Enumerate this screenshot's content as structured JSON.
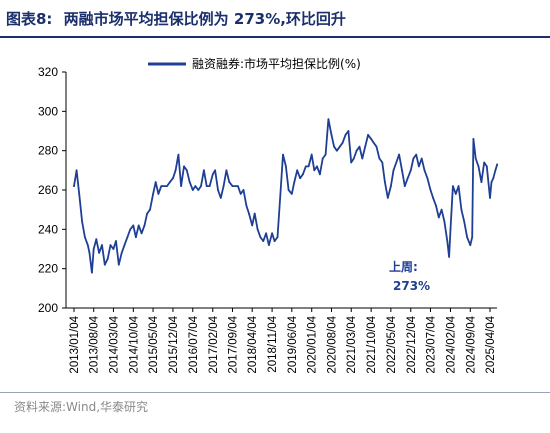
{
  "header": {
    "figure_label": "图表8:",
    "title": "两融市场平均担保比例为 273%,环比回升"
  },
  "footer": {
    "source": "资料来源:Wind,华泰研究"
  },
  "colors": {
    "line": "#1f3f94",
    "axis": "#000000",
    "annotation": "#1f3f94"
  },
  "chart_data": {
    "type": "line",
    "title": "两融市场平均担保比例为 273%,环比回升",
    "xlabel": "",
    "ylabel": "",
    "ylim": [
      200,
      320
    ],
    "yticks": [
      200,
      220,
      240,
      260,
      280,
      300,
      320
    ],
    "grid": false,
    "legend_position": "top-right",
    "x_tick_labels": [
      "2013/01/04",
      "2013/08/04",
      "2014/03/04",
      "2014/10/04",
      "2015/05/04",
      "2015/12/04",
      "2016/07/04",
      "2017/02/04",
      "2017/09/04",
      "2018/04/04",
      "2018/11/04",
      "2019/06/04",
      "2020/01/04",
      "2020/08/04",
      "2021/03/04",
      "2021/10/04",
      "2022/05/04",
      "2022/12/04",
      "2023/07/04",
      "2024/02/04",
      "2024/09/04",
      "2025/04/04"
    ],
    "annotation": {
      "line1": "上周:",
      "line2": "273%"
    },
    "series": [
      {
        "name": "融资融券:市场平均担保比例(%)",
        "points": [
          [
            "2013/01/04",
            262
          ],
          [
            "2013/02/01",
            270
          ],
          [
            "2013/03/01",
            258
          ],
          [
            "2013/04/01",
            244
          ],
          [
            "2013/05/01",
            236
          ],
          [
            "2013/06/01",
            232
          ],
          [
            "2013/06/20",
            228
          ],
          [
            "2013/07/15",
            218
          ],
          [
            "2013/08/04",
            230
          ],
          [
            "2013/09/01",
            235
          ],
          [
            "2013/10/01",
            228
          ],
          [
            "2013/11/01",
            232
          ],
          [
            "2013/12/01",
            222
          ],
          [
            "2014/01/01",
            225
          ],
          [
            "2014/02/01",
            232
          ],
          [
            "2014/03/04",
            230
          ],
          [
            "2014/04/01",
            234
          ],
          [
            "2014/05/01",
            222
          ],
          [
            "2014/06/01",
            228
          ],
          [
            "2014/07/01",
            232
          ],
          [
            "2014/08/01",
            236
          ],
          [
            "2014/09/01",
            240
          ],
          [
            "2014/10/04",
            242
          ],
          [
            "2014/11/01",
            236
          ],
          [
            "2014/12/01",
            242
          ],
          [
            "2015/01/01",
            238
          ],
          [
            "2015/02/01",
            242
          ],
          [
            "2015/03/01",
            248
          ],
          [
            "2015/04/01",
            250
          ],
          [
            "2015/05/04",
            258
          ],
          [
            "2015/06/01",
            264
          ],
          [
            "2015/07/01",
            258
          ],
          [
            "2015/08/01",
            262
          ],
          [
            "2015/09/01",
            262
          ],
          [
            "2015/10/01",
            262
          ],
          [
            "2015/11/01",
            264
          ],
          [
            "2015/12/04",
            266
          ],
          [
            "2016/01/01",
            270
          ],
          [
            "2016/02/01",
            278
          ],
          [
            "2016/03/01",
            262
          ],
          [
            "2016/04/01",
            272
          ],
          [
            "2016/05/01",
            270
          ],
          [
            "2016/06/01",
            264
          ],
          [
            "2016/07/04",
            260
          ],
          [
            "2016/08/01",
            262
          ],
          [
            "2016/09/01",
            260
          ],
          [
            "2016/10/01",
            262
          ],
          [
            "2016/11/01",
            270
          ],
          [
            "2016/12/01",
            262
          ],
          [
            "2017/01/01",
            262
          ],
          [
            "2017/02/04",
            268
          ],
          [
            "2017/03/01",
            270
          ],
          [
            "2017/04/01",
            260
          ],
          [
            "2017/05/01",
            256
          ],
          [
            "2017/06/01",
            262
          ],
          [
            "2017/07/01",
            270
          ],
          [
            "2017/08/01",
            264
          ],
          [
            "2017/09/04",
            262
          ],
          [
            "2017/10/01",
            262
          ],
          [
            "2017/11/01",
            262
          ],
          [
            "2017/12/01",
            258
          ],
          [
            "2018/01/01",
            260
          ],
          [
            "2018/02/01",
            252
          ],
          [
            "2018/03/01",
            248
          ],
          [
            "2018/04/04",
            242
          ],
          [
            "2018/05/01",
            248
          ],
          [
            "2018/06/01",
            240
          ],
          [
            "2018/07/01",
            236
          ],
          [
            "2018/08/01",
            234
          ],
          [
            "2018/09/01",
            238
          ],
          [
            "2018/10/01",
            232
          ],
          [
            "2018/11/04",
            238
          ],
          [
            "2018/12/01",
            234
          ],
          [
            "2019/01/01",
            236
          ],
          [
            "2019/02/01",
            258
          ],
          [
            "2019/03/01",
            278
          ],
          [
            "2019/04/01",
            272
          ],
          [
            "2019/05/01",
            260
          ],
          [
            "2019/06/04",
            258
          ],
          [
            "2019/07/01",
            264
          ],
          [
            "2019/08/01",
            270
          ],
          [
            "2019/09/01",
            266
          ],
          [
            "2019/10/01",
            268
          ],
          [
            "2019/11/01",
            272
          ],
          [
            "2019/12/01",
            272
          ],
          [
            "2020/01/04",
            278
          ],
          [
            "2020/02/01",
            270
          ],
          [
            "2020/03/01",
            272
          ],
          [
            "2020/04/01",
            268
          ],
          [
            "2020/05/01",
            276
          ],
          [
            "2020/06/01",
            278
          ],
          [
            "2020/07/01",
            296
          ],
          [
            "2020/08/04",
            288
          ],
          [
            "2020/09/01",
            282
          ],
          [
            "2020/10/01",
            280
          ],
          [
            "2020/11/01",
            282
          ],
          [
            "2020/12/01",
            284
          ],
          [
            "2021/01/01",
            288
          ],
          [
            "2021/02/01",
            290
          ],
          [
            "2021/03/04",
            274
          ],
          [
            "2021/04/01",
            276
          ],
          [
            "2021/05/01",
            280
          ],
          [
            "2021/06/01",
            282
          ],
          [
            "2021/07/01",
            276
          ],
          [
            "2021/08/01",
            282
          ],
          [
            "2021/09/01",
            288
          ],
          [
            "2021/10/04",
            286
          ],
          [
            "2021/11/01",
            284
          ],
          [
            "2021/12/01",
            282
          ],
          [
            "2022/01/01",
            276
          ],
          [
            "2022/02/01",
            274
          ],
          [
            "2022/03/01",
            264
          ],
          [
            "2022/04/01",
            256
          ],
          [
            "2022/05/04",
            262
          ],
          [
            "2022/06/01",
            270
          ],
          [
            "2022/07/01",
            274
          ],
          [
            "2022/08/01",
            278
          ],
          [
            "2022/09/01",
            270
          ],
          [
            "2022/10/01",
            262
          ],
          [
            "2022/11/01",
            266
          ],
          [
            "2022/12/04",
            270
          ],
          [
            "2023/01/01",
            276
          ],
          [
            "2023/02/01",
            278
          ],
          [
            "2023/03/01",
            272
          ],
          [
            "2023/04/01",
            276
          ],
          [
            "2023/05/01",
            270
          ],
          [
            "2023/06/01",
            266
          ],
          [
            "2023/07/04",
            260
          ],
          [
            "2023/08/01",
            256
          ],
          [
            "2023/09/01",
            252
          ],
          [
            "2023/10/01",
            246
          ],
          [
            "2023/11/01",
            250
          ],
          [
            "2023/12/01",
            244
          ],
          [
            "2024/01/01",
            234
          ],
          [
            "2024/01/20",
            226
          ],
          [
            "2024/02/04",
            240
          ],
          [
            "2024/03/01",
            262
          ],
          [
            "2024/04/01",
            258
          ],
          [
            "2024/05/01",
            262
          ],
          [
            "2024/06/01",
            250
          ],
          [
            "2024/07/01",
            244
          ],
          [
            "2024/08/01",
            236
          ],
          [
            "2024/09/04",
            232
          ],
          [
            "2024/09/25",
            236
          ],
          [
            "2024/10/08",
            286
          ],
          [
            "2024/11/01",
            276
          ],
          [
            "2024/12/01",
            272
          ],
          [
            "2025/01/01",
            264
          ],
          [
            "2025/02/01",
            274
          ],
          [
            "2025/03/01",
            272
          ],
          [
            "2025/04/04",
            256
          ],
          [
            "2025/04/20",
            264
          ],
          [
            "2025/05/10",
            266
          ],
          [
            "2025/06/01",
            270
          ],
          [
            "2025/06/20",
            273
          ]
        ]
      }
    ]
  }
}
